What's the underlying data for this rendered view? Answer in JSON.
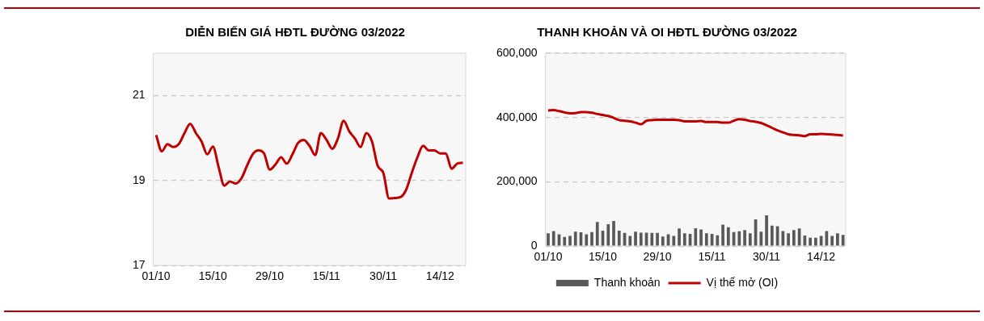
{
  "chart_data": [
    {
      "type": "line",
      "title": "DIỄN BIẾN GIÁ HĐTL ĐƯỜNG 03/2022",
      "categories": [
        "01/10",
        null,
        null,
        null,
        null,
        null,
        null,
        null,
        null,
        null,
        "15/10",
        null,
        null,
        null,
        null,
        null,
        null,
        null,
        null,
        null,
        "29/10",
        null,
        null,
        null,
        null,
        null,
        null,
        null,
        null,
        null,
        "15/11",
        null,
        null,
        null,
        null,
        null,
        null,
        null,
        null,
        null,
        "30/11",
        null,
        null,
        null,
        null,
        null,
        null,
        null,
        null,
        null,
        "14/12",
        null,
        null,
        null,
        null
      ],
      "values": [
        20.07,
        19.69,
        19.86,
        19.79,
        19.86,
        20.12,
        20.34,
        20.12,
        19.92,
        19.62,
        19.8,
        19.32,
        18.88,
        18.98,
        18.93,
        19.05,
        19.35,
        19.62,
        19.71,
        19.64,
        19.26,
        19.38,
        19.55,
        19.4,
        19.62,
        19.89,
        19.96,
        19.82,
        19.6,
        20.12,
        19.96,
        19.75,
        19.99,
        20.41,
        20.16,
        19.99,
        19.79,
        20.12,
        19.92,
        19.35,
        19.18,
        18.58,
        18.59,
        18.61,
        18.78,
        19.18,
        19.55,
        19.82,
        19.71,
        19.71,
        19.64,
        19.64,
        19.28,
        19.4,
        19.42
      ],
      "color": "#c00000",
      "ylim": [
        17,
        22
      ],
      "yticks": [
        17,
        19,
        21
      ],
      "grid": "y"
    },
    {
      "type": "bar",
      "title": "THANH KHOẢN VÀ OI HĐTL ĐƯỜNG 03/2022",
      "categories": [
        "01/10",
        null,
        null,
        null,
        null,
        null,
        null,
        null,
        null,
        null,
        "15/10",
        null,
        null,
        null,
        null,
        null,
        null,
        null,
        null,
        null,
        "29/10",
        null,
        null,
        null,
        null,
        null,
        null,
        null,
        null,
        null,
        "15/11",
        null,
        null,
        null,
        null,
        null,
        null,
        null,
        null,
        null,
        "30/11",
        null,
        null,
        null,
        null,
        null,
        null,
        null,
        null,
        null,
        "14/12",
        null,
        null,
        null,
        null
      ],
      "series": [
        {
          "name": "Thanh khoản",
          "type": "bar",
          "color": "#595959",
          "values": [
            40000,
            47000,
            37000,
            29000,
            32000,
            45000,
            43000,
            37000,
            44000,
            75000,
            48000,
            68000,
            78000,
            48000,
            41000,
            32000,
            45000,
            42000,
            42000,
            41000,
            41000,
            30000,
            37000,
            32000,
            55000,
            40000,
            38000,
            56000,
            52000,
            40000,
            38000,
            34000,
            67000,
            59000,
            44000,
            46000,
            50000,
            40000,
            83000,
            45000,
            96000,
            64000,
            62000,
            47000,
            40000,
            50000,
            55000,
            33000,
            26000,
            26000,
            32000,
            47000,
            32000,
            40000,
            35000
          ]
        },
        {
          "name": "Vị thế mở (OI)",
          "type": "line",
          "color": "#c00000",
          "values": [
            422000,
            423000,
            420000,
            416000,
            413000,
            414000,
            417000,
            417000,
            415000,
            411000,
            408000,
            405000,
            399000,
            392000,
            390000,
            388000,
            384000,
            379000,
            390000,
            392000,
            393000,
            393000,
            393000,
            393000,
            392000,
            388000,
            388000,
            388000,
            389000,
            386000,
            386000,
            386000,
            384000,
            384000,
            390000,
            395000,
            393000,
            389000,
            387000,
            383000,
            376000,
            368000,
            360000,
            354000,
            348000,
            346000,
            345000,
            342000,
            348000,
            348000,
            349000,
            348000,
            347000,
            346000,
            344000
          ]
        }
      ],
      "ylim": [
        0,
        600000
      ],
      "yticks": [
        {
          "value": 0,
          "label": "0"
        },
        {
          "value": 200000,
          "label": "200,000"
        },
        {
          "value": 400000,
          "label": "400,000"
        },
        {
          "value": 600000,
          "label": "600,000"
        }
      ],
      "grid": "y",
      "legend": "bottom"
    }
  ]
}
